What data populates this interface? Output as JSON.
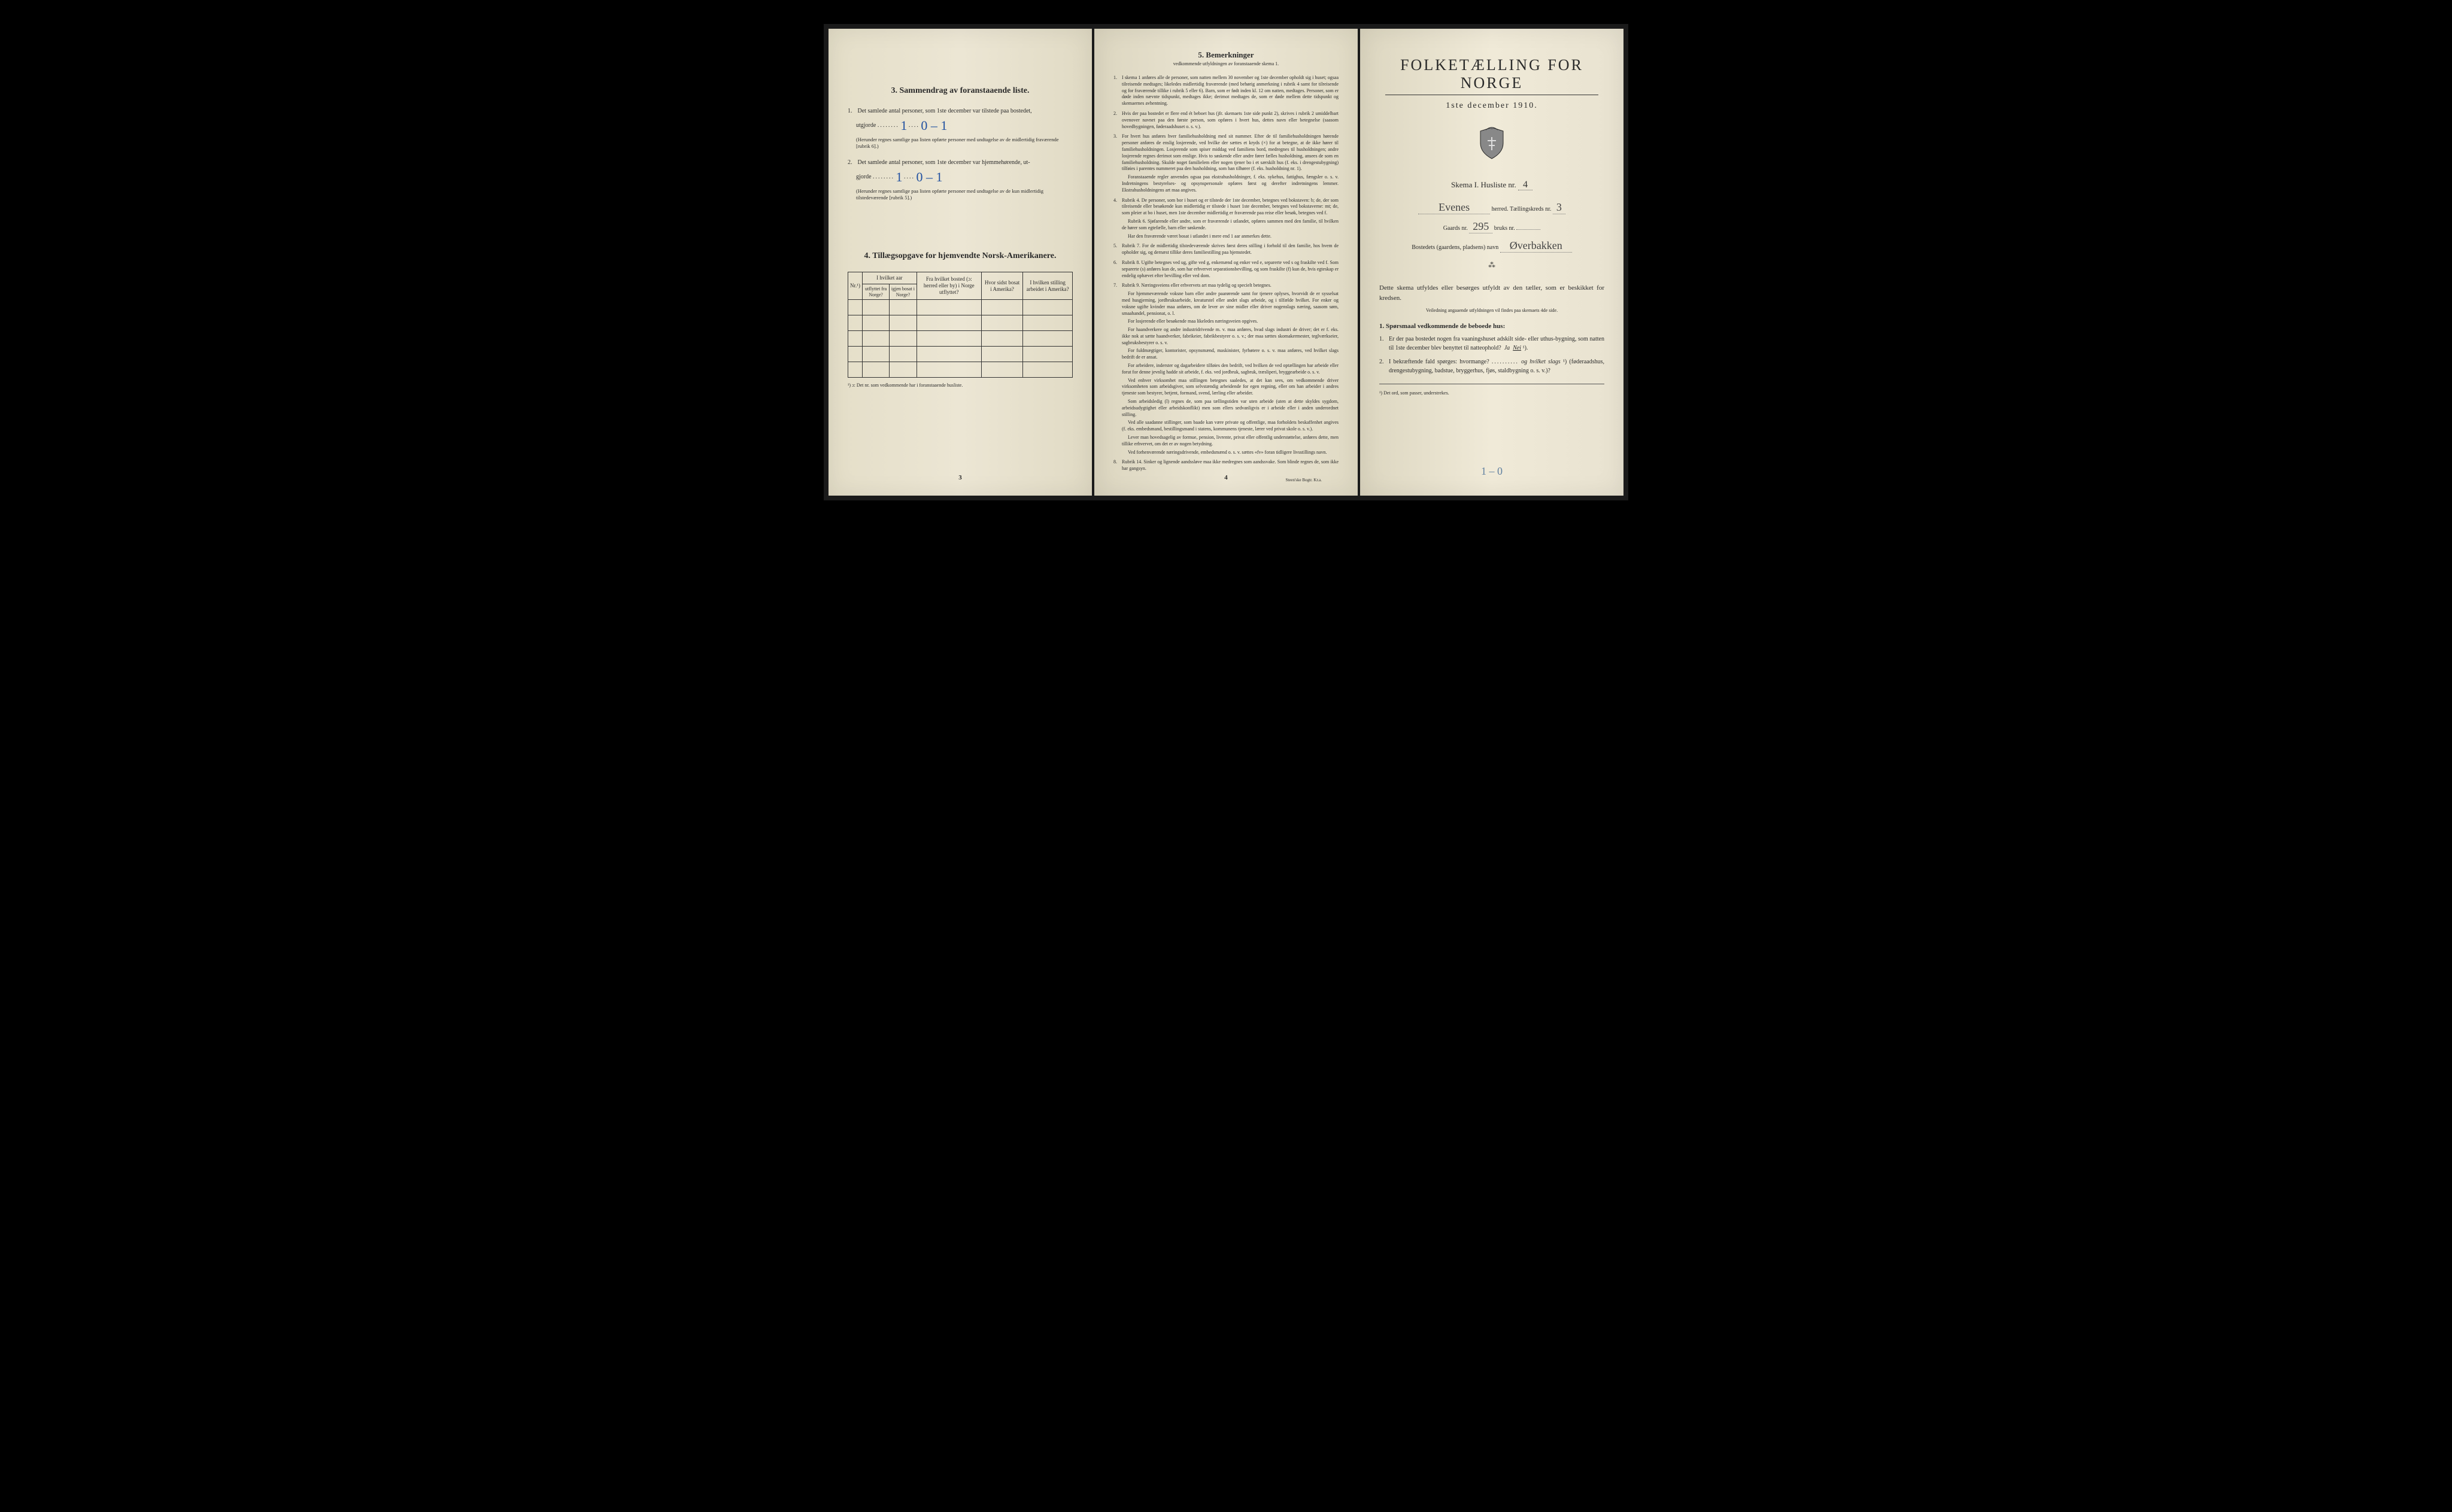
{
  "left": {
    "section3": {
      "title": "3.  Sammendrag av foranstaaende liste.",
      "q1_pre": "Det samlede antal personer, som 1ste december var tilstede paa bostedet,",
      "utgjorde": "utgjorde",
      "q1_hand": "0 – 1",
      "q1_hand_before": "1",
      "q1_note": "(Herunder regnes samtlige paa listen opførte personer med undtagelse av de midlertidig fraværende [rubrik 6].)",
      "q2_pre": "Det samlede antal personer, som 1ste december var hjemmehørende, ut-",
      "q2_utg": "gjorde",
      "q2_hand_before": "1",
      "q2_hand": "0 – 1",
      "q2_note": "(Herunder regnes samtlige paa listen opførte personer med undtagelse av de kun midlertidig tilstedeværende [rubrik 5].)"
    },
    "section4": {
      "title": "4.  Tillægsopgave for hjemvendte Norsk-Amerikanere.",
      "headers": {
        "nr": "Nr.¹)",
        "col1_top": "I hvilket aar",
        "col1a": "utflyttet fra Norge?",
        "col1b": "igjen bosat i Norge?",
        "col2": "Fra hvilket bosted (ɔ: herred eller by) i Norge utflyttet?",
        "col3": "Hvor sidst bosat i Amerika?",
        "col4": "I hvilken stilling arbeidet i Amerika?"
      },
      "footnote": "¹) ɔ: Det nr. som vedkommende har i foranstaaende husliste."
    },
    "pagenum": "3"
  },
  "center": {
    "title": "5.  Bemerkninger",
    "subtitle": "vedkommende utfyldningen av foranstaaende skema 1.",
    "items": [
      {
        "n": "1.",
        "t": "I skema 1 anføres alle de personer, som natten mellem 30 november og 1ste december opholdt sig i huset; ogsaa tilreisende medtages; likeledes midlertidig fraværende (med behørig anmerkning i rubrik 4 samt for tilreisende og for fraværende tillike i rubrik 5 eller 6). Barn, som er født inden kl. 12 om natten, medtages. Personer, som er døde inden nævnte tidspunkt, medtages ikke; derimot medtages de, som er døde mellem dette tidspunkt og skemaernes avhentning."
      },
      {
        "n": "2.",
        "t": "Hvis der paa bostedet er flere end ét beboet hus (jfr. skemaets 1ste side punkt 2), skrives i rubrik 2 umiddelbart ovenover navnet paa den første person, som opføres i hvert hus, dettes navn eller betegnelse (saasom hovedbygningen, føderaadshuset o. s. v.)."
      },
      {
        "n": "3.",
        "t": "For hvert hus anføres hver familiehusholdning med sit nummer. Efter de til familiehusholdningen hørende personer anføres de enslig losjerende, ved hvilke der sættes et kryds (×) for at betegne, at de ikke hører til familiehusholdningen. Losjerende som spiser middag ved familiens bord, medregnes til husholdningen; andre losjerende regnes derimot som enslige. Hvis to søskende eller andre fører fælles husholdning, ansees de som en familiehusholdning. Skulde noget familielem eller nogen tjener bo i et særskilt hus (f. eks. i drengestubygning) tilføies i parentes nummeret paa den husholdning, som han tilhører (f. eks. husholdning nr. 1).",
        "paras": [
          "Foranstaaende regler anvendes ogsaa paa ekstrahusholdninger, f. eks. sykehus, fattighus, fængsler o. s. v. Indretningens bestyrelses- og opsynspersonale opføres først og derefter indretningens lemmer. Ekstrahusholdningens art maa angives."
        ]
      },
      {
        "n": "4.",
        "t": "Rubrik 4. De personer, som bor i huset og er tilstede der 1ste december, betegnes ved bokstaven: b; de, der som tilreisende eller besøkende kun midlertidig er tilstede i huset 1ste december, betegnes ved bokstaverne: mt; de, som pleier at bo i huset, men 1ste december midlertidig er fraværende paa reise eller besøk, betegnes ved f.",
        "paras": [
          "Rubrik 6. Sjøfarende eller andre, som er fraværende i utlandet, opføres sammen med den familie, til hvilken de hører som egtefælle, barn eller søskende.",
          "Har den fraværende været bosat i utlandet i mere end 1 aar anmerkes dette."
        ]
      },
      {
        "n": "5.",
        "t": "Rubrik 7. For de midlertidig tilstedeværende skrives først deres stilling i forhold til den familie, hos hvem de opholder sig, og dernæst tillike deres familiestilling paa hjemstedet."
      },
      {
        "n": "6.",
        "t": "Rubrik 8. Ugifte betegnes ved ug, gifte ved g, enkemænd og enker ved e, separerte ved s og fraskilte ved f. Som separerte (s) anføres kun de, som har erhvervet separationsbevilling, og som fraskilte (f) kun de, hvis egteskap er endelig ophævet efter bevilling eller ved dom."
      },
      {
        "n": "7.",
        "t": "Rubrik 9. Næringsveiens eller erhvervets art maa tydelig og specielt betegnes.",
        "paras": [
          "For hjemmeværende voksne barn eller andre paarørende samt for tjenere oplyses, hvorvidt de er sysselsat med husgjerning, jordbruksarbeide, kreaturstel eller andet slags arbeide, og i tilfælde hvilket. For enker og voksne ugifte kvinder maa anføres, om de lever av sine midler eller driver nogenslags næring, saasom søm, smaahandel, pensionat, o. l.",
          "For losjerende eller besøkende maa likeledes næringsveien opgives.",
          "For haandverkere og andre industridrivende m. v. maa anføres, hvad slags industri de driver; det er f. eks. ikke nok at sætte haandverker, fabrikeier, fabrikbestyrer o. s. v.; der maa sættes skomakermester, teglværkseier, sagbruksbestyrer o. s. v.",
          "For fuldmægtiger, kontorister, opsynsmænd, maskinister, fyrbøtere o. s. v. maa anføres, ved hvilket slags bedrift de er ansat.",
          "For arbeidere, inderster og dagarbeidere tilføies den bedrift, ved hvilken de ved optællingen har arbeide eller forut for denne jevnlig hadde sit arbeide, f. eks. ved jordbruk, sagbruk, træsliperi, bryggearbeide o. s. v.",
          "Ved enhver virksomhet maa stillingen betegnes saaledes, at det kan sees, om vedkommende driver virksomheten som arbeidsgiver, som selvstændig arbeidende for egen regning, eller om han arbeider i andres tjeneste som bestyrer, betjent, formand, svend, lærling eller arbeider.",
          "Som arbeidsledig (l) regnes de, som paa tællingstiden var uten arbeide (uten at dette skyldes sygdom, arbeidsudygtighet eller arbeidskonflikt) men som ellers sedvanligvis er i arbeide eller i anden underordnet stilling.",
          "Ved alle saadanne stillinger, som baade kan være private og offentlige, maa forholdets beskaffenhet angives (f. eks. embedsmand, bestillingsmand i statens, kommunens tjeneste, lærer ved privat skole o. s. v.).",
          "Lever man hovedsagelig av formue, pension, livrente, privat eller offentlig understøttelse, anføres dette, men tillike erhvervet, om det er av nogen betydning.",
          "Ved forhenværende næringsdrivende, embedsmænd o. s. v. sættes «fv» foran tidligere livsstillings navn."
        ]
      },
      {
        "n": "8.",
        "t": "Rubrik 14. Sinker og lignende aandssløve maa ikke medregnes som aandssvake. Som blinde regnes de, som ikke har gangsyn."
      }
    ],
    "pagenum": "4",
    "printer": "Steen'ske Bogtr.  Kr.a."
  },
  "right": {
    "title": "FOLKETÆLLING FOR NORGE",
    "date": "1ste december 1910.",
    "skema_label": "Skema I.   Husliste nr.",
    "husliste_nr": "4",
    "herred_fill": "Evenes",
    "herred_label": "herred.  Tællingskreds nr.",
    "kreds_nr": "3",
    "gaards_label_pre": "Gaards nr.",
    "gaards_nr": "295",
    "bruks_label": "bruks nr.",
    "bruks_nr": "",
    "bosted_label": "Bostedets (gaardens, pladsens) navn",
    "bosted_fill": "Øverbakken",
    "instr1": "Dette skema utfyldes eller besørges utfyldt av den tæller, som er beskikket for kredsen.",
    "instr2": "Veiledning angaaende utfyldningen vil findes paa skemaets 4de side.",
    "sporsmaal_hd": "1. Spørsmaal vedkommende de beboede hus:",
    "q1": "Er der paa bostedet nogen fra vaaningshuset adskilt side- eller uthus-bygning, som natten til 1ste december blev benyttet til natteophold?",
    "q1_answer_ja": "Ja",
    "q1_answer_nei": "Nei",
    "q1_sup": "¹).",
    "q2": "I bekræftende fald spørges: hvormange?",
    "q2_og": "og hvilket slags",
    "q2_sup": "¹)",
    "q2_tail": "(føderaadshus, drengestubygning, badstue, bryggerhus, fjøs, staldbygning o. s. v.)?",
    "footnote": "¹) Det ord, som passer, understrekes.",
    "pencil": "1 – 0"
  },
  "colors": {
    "paper": "#e8e2d0",
    "ink": "#2a2a2a",
    "handblue": "#2050a0",
    "pencil": "#6080a0"
  }
}
